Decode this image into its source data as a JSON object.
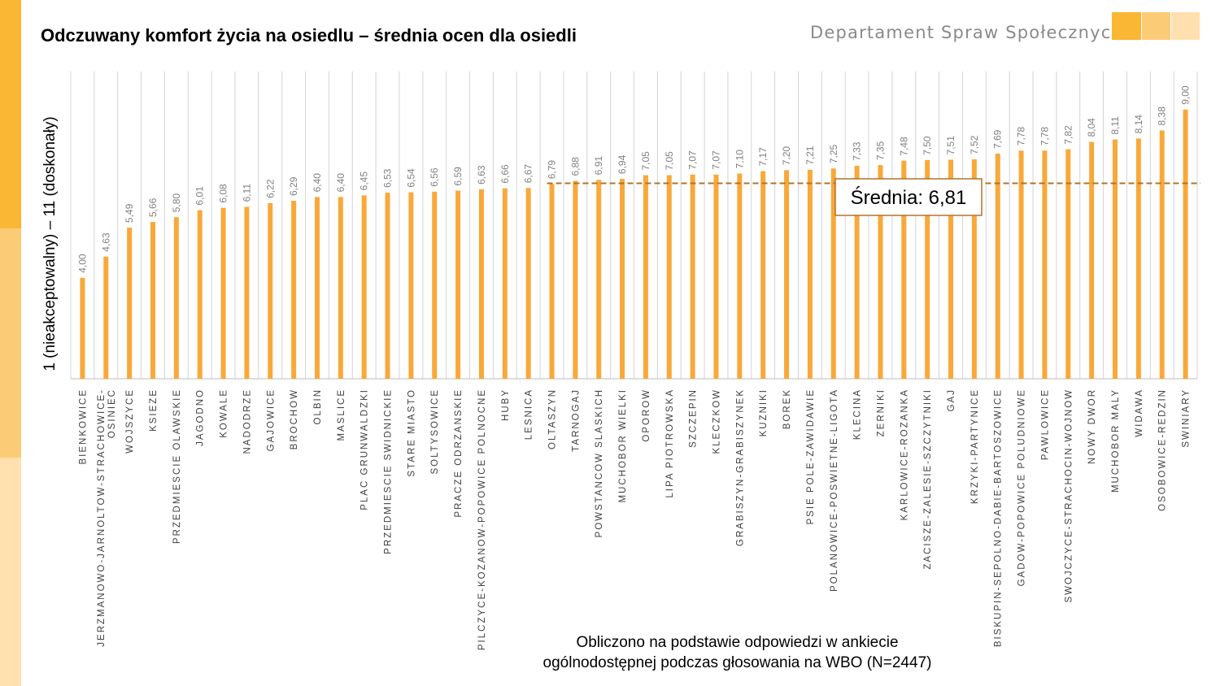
{
  "title": "Odczuwany komfort życia na osiedlu – średnia ocen dla osiedli",
  "department": "Departament Spraw Społecznych",
  "note_line1": "Obliczono na podstawie odpowiedzi w ankiecie",
  "note_line2": "ogólnodostępnej podczas głosowania na WBO (N=2447)",
  "colors": {
    "bar": "#F9A83A",
    "mean_line": "#B4712A",
    "accent1": "#F9B733",
    "accent2": "#FCCB75",
    "accent3": "#FFE0AE"
  },
  "chart_data": {
    "type": "bar",
    "ylabel": "1 (nieakceptowalny) – 11 (doskonały)",
    "ylim": [
      1,
      10.13
    ],
    "mean_label": "Średnia: 6,81",
    "mean_value": 6.81,
    "categories": [
      "BIENKOWICE",
      "JERZMANOWO-JARNOLTOW-STRACHOWICE-OSINIEC",
      "WOJSZYCE",
      "KSIEZE",
      "PRZEDMIESCIE OLAWSKIE",
      "JAGODNO",
      "KOWALE",
      "NADODRZE",
      "GAJOWICE",
      "BROCHOW",
      "OLBIN",
      "MASLICE",
      "PLAC GRUNWALDZKI",
      "PRZEDMIESCIE SWIDNICKIE",
      "STARE MIASTO",
      "SOLTYSOWICE",
      "PRACZE ODRZANSKIE",
      "PILCZYCE-KOZANOW-POPOWICE POLNOCNE",
      "HUBY",
      "LESNICA",
      "OLTASZYN",
      "TARNOGAJ",
      "POWSTANCOW SLASKICH",
      "MUCHOBOR WIELKI",
      "OPOROW",
      "LIPA PIOTROWSKA",
      "SZCZEPIN",
      "KLECZKOW",
      "GRABISZYN-GRABISZYNEK",
      "KUZNIKI",
      "BOREK",
      "PSIE POLE-ZAWIDAWIE",
      "POLANOWICE-POSWIETNE-LIGOTA",
      "KLECINA",
      "ZERNIKI",
      "KARLOWICE-ROZANKA",
      "ZACISZE-ZALESIE-SZCZYTNIKI",
      "GAJ",
      "KRZYKI-PARTYNICE",
      "BISKUPIN-SEPOLNO-DABIE-BARTOSZOWICE",
      "GADOW-POPOWICE POLUDNIOWE",
      "PAWLOWICE",
      "SWOJCZYCE-STRACHOCIN-WOJNOW",
      "NOWY DWOR",
      "MUCHOBOR MALY",
      "WIDAWA",
      "OSOBOWICE-REDZIN",
      "SWINIARY"
    ],
    "values": [
      4.0,
      4.63,
      5.49,
      5.66,
      5.8,
      6.01,
      6.08,
      6.11,
      6.22,
      6.29,
      6.4,
      6.4,
      6.45,
      6.53,
      6.54,
      6.56,
      6.59,
      6.63,
      6.66,
      6.67,
      6.79,
      6.88,
      6.91,
      6.94,
      7.05,
      7.05,
      7.07,
      7.07,
      7.1,
      7.17,
      7.2,
      7.21,
      7.25,
      7.33,
      7.35,
      7.48,
      7.5,
      7.51,
      7.52,
      7.69,
      7.78,
      7.78,
      7.82,
      8.04,
      8.11,
      8.14,
      8.38,
      9.0
    ],
    "value_labels": [
      "4,00",
      "4,63",
      "5,49",
      "5,66",
      "5,80",
      "6,01",
      "6,08",
      "6,11",
      "6,22",
      "6,29",
      "6,40",
      "6,40",
      "6,45",
      "6,53",
      "6,54",
      "6,56",
      "6,59",
      "6,63",
      "6,66",
      "6,67",
      "6,79",
      "6,88",
      "6,91",
      "6,94",
      "7,05",
      "7,05",
      "7,07",
      "7,07",
      "7,10",
      "7,17",
      "7,20",
      "7,21",
      "7,25",
      "7,33",
      "7,35",
      "7,48",
      "7,50",
      "7,51",
      "7,52",
      "7,69",
      "7,78",
      "7,78",
      "7,82",
      "8,04",
      "8,11",
      "8,14",
      "8,38",
      "9,00"
    ],
    "category_lines": [
      [
        "BIENKOWICE"
      ],
      [
        "JERZMANOWO-JARNOLTOW-STRACHOWICE-",
        "OSINIEC"
      ],
      [
        "WOJSZYCE"
      ],
      [
        "KSIEZE"
      ],
      [
        "PRZEDMIESCIE OLAWSKIE"
      ],
      [
        "JAGODNO"
      ],
      [
        "KOWALE"
      ],
      [
        "NADODRZE"
      ],
      [
        "GAJOWICE"
      ],
      [
        "BROCHOW"
      ],
      [
        "OLBIN"
      ],
      [
        "MASLICE"
      ],
      [
        "PLAC GRUNWALDZKI"
      ],
      [
        "PRZEDMIESCIE SWIDNICKIE"
      ],
      [
        "STARE MIASTO"
      ],
      [
        "SOLTYSOWICE"
      ],
      [
        "PRACZE ODRZANSKIE"
      ],
      [
        "PILCZYCE-KOZANOW-POPOWICE POLNOCNE"
      ],
      [
        "HUBY"
      ],
      [
        "LESNICA"
      ],
      [
        "OLTASZYN"
      ],
      [
        "TARNOGAJ"
      ],
      [
        "POWSTANCOW SLASKICH"
      ],
      [
        "MUCHOBOR WIELKI"
      ],
      [
        "OPOROW"
      ],
      [
        "LIPA PIOTROWSKA"
      ],
      [
        "SZCZEPIN"
      ],
      [
        "KLECZKOW"
      ],
      [
        "GRABISZYN-GRABISZYNEK"
      ],
      [
        "KUZNIKI"
      ],
      [
        "BOREK"
      ],
      [
        "PSIE POLE-ZAWIDAWIE"
      ],
      [
        "POLANOWICE-POSWIETNE-LIGOTA"
      ],
      [
        "KLECINA"
      ],
      [
        "ZERNIKI"
      ],
      [
        "KARLOWICE-ROZANKA"
      ],
      [
        "ZACISZE-ZALESIE-SZCZYTNIKI"
      ],
      [
        "GAJ"
      ],
      [
        "KRZYKI-PARTYNICE"
      ],
      [
        "BISKUPIN-SEPOLNO-DABIE-BARTOSZOWICE"
      ],
      [
        "GADOW-POPOWICE POLUDNIOWE"
      ],
      [
        "PAWLOWICE"
      ],
      [
        "SWOJCZYCE-STRACHOCIN-WOJNOW"
      ],
      [
        "NOWY DWOR"
      ],
      [
        "MUCHOBOR MALY"
      ],
      [
        "WIDAWA"
      ],
      [
        "OSOBOWICE-REDZIN"
      ],
      [
        "SWINIARY"
      ]
    ],
    "grid": true,
    "legend": "none"
  }
}
